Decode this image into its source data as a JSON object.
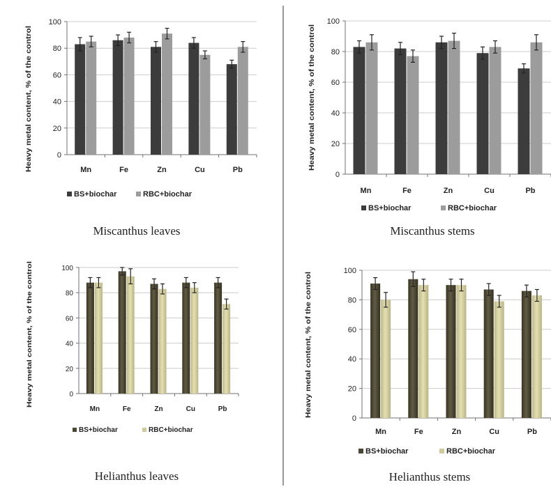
{
  "colors": {
    "bs_dark": "#3c3c3c",
    "rbc_gray": "#9c9c9c",
    "bs_olive": "#4b4632",
    "rbc_beige": "#cfca9c",
    "axis": "#707070",
    "grid": "#cccccc",
    "divider": "#777777"
  },
  "chart_data": [
    {
      "type": "bar",
      "caption": "Miscanthus leaves",
      "ylabel": "Heavy metal content, % of the control",
      "ylim": [
        0,
        100
      ],
      "yticks": [
        0,
        20,
        40,
        60,
        80,
        100
      ],
      "categories": [
        "Mn",
        "Fe",
        "Zn",
        "Cu",
        "Pb"
      ],
      "grid": true,
      "legend_position": "bottom",
      "series": [
        {
          "name": "BS+biochar",
          "values": [
            83,
            86,
            81,
            84,
            68
          ],
          "errors": [
            5,
            4,
            4,
            4,
            3
          ],
          "color": "#3c3c3c"
        },
        {
          "name": "RBC+biochar",
          "values": [
            85,
            88,
            91,
            75,
            81
          ],
          "errors": [
            4,
            4,
            4,
            3,
            4
          ],
          "color": "#9c9c9c"
        }
      ]
    },
    {
      "type": "bar",
      "caption": "Miscanthus stems",
      "ylabel": "Heavy metal content, % of the control",
      "ylim": [
        0,
        100
      ],
      "yticks": [
        0,
        20,
        40,
        60,
        80,
        100
      ],
      "categories": [
        "Mn",
        "Fe",
        "Zn",
        "Cu",
        "Pb"
      ],
      "grid": true,
      "legend_position": "bottom",
      "series": [
        {
          "name": "BS+biochar",
          "values": [
            83,
            82,
            86,
            79,
            69
          ],
          "errors": [
            4,
            4,
            4,
            4,
            3
          ],
          "color": "#3c3c3c"
        },
        {
          "name": "RBC+biochar",
          "values": [
            86,
            77,
            87,
            83,
            86
          ],
          "errors": [
            5,
            4,
            5,
            4,
            5
          ],
          "color": "#9c9c9c"
        }
      ]
    },
    {
      "type": "bar",
      "caption": "Helianthus leaves",
      "ylabel": "Heavy metal content, % of the control",
      "ylim": [
        0,
        100
      ],
      "yticks": [
        0,
        20,
        40,
        60,
        80,
        100
      ],
      "categories": [
        "Mn",
        "Fe",
        "Zn",
        "Cu",
        "Pb"
      ],
      "grid": true,
      "legend_position": "bottom",
      "series": [
        {
          "name": "BS+biochar",
          "values": [
            88,
            97,
            87,
            88,
            88
          ],
          "errors": [
            4,
            3,
            4,
            4,
            4
          ],
          "color": "#4b4632"
        },
        {
          "name": "RBC+biochar",
          "values": [
            88,
            93,
            83,
            84,
            71
          ],
          "errors": [
            4,
            6,
            4,
            4,
            4
          ],
          "color": "#cfca9c"
        }
      ]
    },
    {
      "type": "bar",
      "caption": "Helianthus stems",
      "ylabel": "Heavy metal content, % of the control",
      "ylim": [
        0,
        100
      ],
      "yticks": [
        0,
        20,
        40,
        60,
        80,
        100
      ],
      "categories": [
        "Mn",
        "Fe",
        "Zn",
        "Cu",
        "Pb"
      ],
      "grid": true,
      "legend_position": "bottom",
      "series": [
        {
          "name": "BS+biochar",
          "values": [
            91,
            94,
            90,
            87,
            86
          ],
          "errors": [
            4,
            5,
            4,
            4,
            4
          ],
          "color": "#4b4632"
        },
        {
          "name": "RBC+biochar",
          "values": [
            80,
            90,
            90,
            79,
            83
          ],
          "errors": [
            5,
            4,
            4,
            4,
            4
          ],
          "color": "#cfca9c"
        }
      ]
    }
  ]
}
